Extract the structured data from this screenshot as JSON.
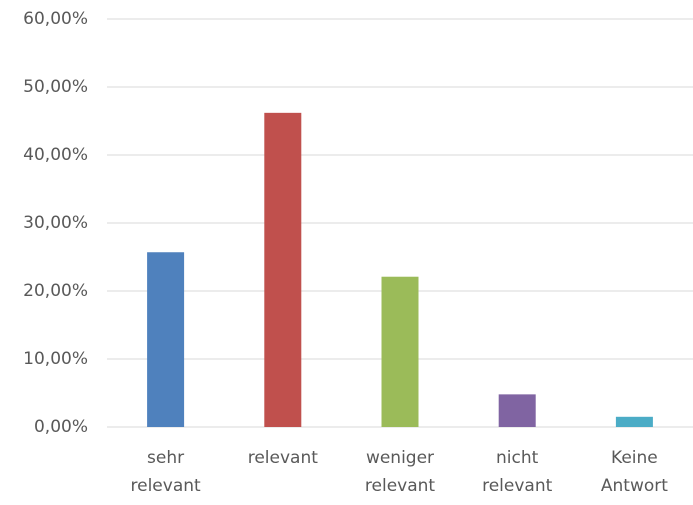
{
  "chart_data": {
    "type": "bar",
    "categories": [
      "sehr relevant",
      "relevant",
      "weniger relevant",
      "nicht relevant",
      "Keine Antwort"
    ],
    "values": [
      25.7,
      46.2,
      22.1,
      4.8,
      1.5
    ],
    "colors": [
      "#4f81bd",
      "#c0504d",
      "#9bbb59",
      "#8064a2",
      "#4bacc6"
    ],
    "ylim": [
      0,
      60
    ],
    "yticks": [
      {
        "value": 0,
        "label": "0,00%"
      },
      {
        "value": 10,
        "label": "10,00%"
      },
      {
        "value": 20,
        "label": "20,00%"
      },
      {
        "value": 30,
        "label": "30,00%"
      },
      {
        "value": 40,
        "label": "40,00%"
      },
      {
        "value": 50,
        "label": "50,00%"
      },
      {
        "value": 60,
        "label": "60,00%"
      }
    ],
    "grid": true
  }
}
